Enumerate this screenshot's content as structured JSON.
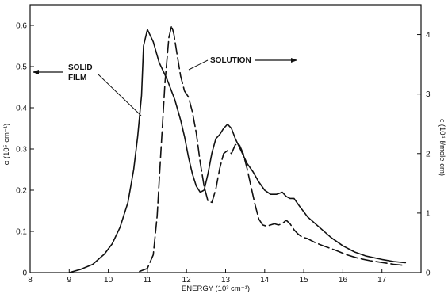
{
  "chart_data": {
    "type": "line",
    "xlabel": "ENERGY (10³ cm⁻¹)",
    "ylabel_left": "α (10⁵ cm⁻¹)",
    "ylabel_right": "ϵ (10⁴ ℓ/mole cm)",
    "xlim": [
      8,
      18
    ],
    "ylim_left": [
      0,
      0.65
    ],
    "ylim_right": [
      0,
      4.5
    ],
    "xticks": [
      "8",
      "9",
      "10",
      "11",
      "12",
      "13",
      "14",
      "15",
      "16",
      "17"
    ],
    "yticks_left": [
      "0",
      "0.1",
      "0.2",
      "0.3",
      "0.4",
      "0.5",
      "0.6"
    ],
    "yticks_right": [
      "0",
      "1",
      "2",
      "3",
      "4"
    ],
    "annotations": {
      "solid": [
        "SOLID",
        "FILM"
      ],
      "solution": "SOLUTION"
    },
    "series": [
      {
        "label": "SOLID FILM",
        "axis": "left",
        "style": "solid",
        "color": "#111111",
        "x": [
          9.0,
          9.3,
          9.6,
          9.9,
          10.1,
          10.3,
          10.5,
          10.65,
          10.75,
          10.85,
          10.9,
          11.0,
          11.15,
          11.3,
          11.5,
          11.7,
          11.85,
          11.95,
          12.05,
          12.15,
          12.25,
          12.35,
          12.45,
          12.55,
          12.65,
          12.75,
          12.85,
          12.95,
          13.05,
          13.15,
          13.25,
          13.35,
          13.45,
          13.55,
          13.7,
          13.85,
          14.0,
          14.15,
          14.3,
          14.45,
          14.55,
          14.65,
          14.75,
          14.9,
          15.1,
          15.4,
          15.7,
          16.0,
          16.3,
          16.6,
          17.0,
          17.3,
          17.6
        ],
        "y": [
          0.0,
          0.008,
          0.02,
          0.045,
          0.07,
          0.11,
          0.17,
          0.25,
          0.33,
          0.43,
          0.55,
          0.59,
          0.56,
          0.51,
          0.47,
          0.42,
          0.37,
          0.33,
          0.28,
          0.24,
          0.21,
          0.195,
          0.2,
          0.24,
          0.29,
          0.325,
          0.335,
          0.35,
          0.36,
          0.35,
          0.325,
          0.305,
          0.285,
          0.265,
          0.245,
          0.22,
          0.2,
          0.19,
          0.19,
          0.195,
          0.185,
          0.18,
          0.18,
          0.16,
          0.135,
          0.11,
          0.085,
          0.065,
          0.05,
          0.04,
          0.032,
          0.027,
          0.024
        ]
      },
      {
        "label": "SOLUTION",
        "axis": "right",
        "style": "dashed",
        "color": "#111111",
        "x": [
          10.8,
          11.0,
          11.15,
          11.25,
          11.35,
          11.45,
          11.55,
          11.62,
          11.68,
          11.75,
          11.85,
          11.95,
          12.05,
          12.15,
          12.25,
          12.35,
          12.45,
          12.55,
          12.65,
          12.75,
          12.85,
          12.95,
          13.05,
          13.15,
          13.25,
          13.35,
          13.45,
          13.55,
          13.65,
          13.75,
          13.85,
          13.95,
          14.05,
          14.15,
          14.25,
          14.35,
          14.45,
          14.55,
          14.65,
          14.75,
          14.85,
          14.95,
          15.1,
          15.3,
          15.5,
          15.8,
          16.1,
          16.4,
          16.7,
          17.0,
          17.3,
          17.6
        ],
        "y": [
          0.02,
          0.07,
          0.3,
          0.95,
          2.1,
          3.2,
          3.95,
          4.15,
          4.0,
          3.7,
          3.3,
          3.05,
          2.95,
          2.7,
          2.35,
          1.85,
          1.45,
          1.2,
          1.18,
          1.4,
          1.75,
          2.0,
          2.05,
          2.0,
          2.15,
          2.15,
          2.0,
          1.75,
          1.45,
          1.15,
          0.9,
          0.8,
          0.78,
          0.8,
          0.82,
          0.8,
          0.82,
          0.88,
          0.82,
          0.72,
          0.65,
          0.6,
          0.57,
          0.5,
          0.45,
          0.38,
          0.3,
          0.24,
          0.2,
          0.17,
          0.14,
          0.12
        ]
      }
    ]
  }
}
